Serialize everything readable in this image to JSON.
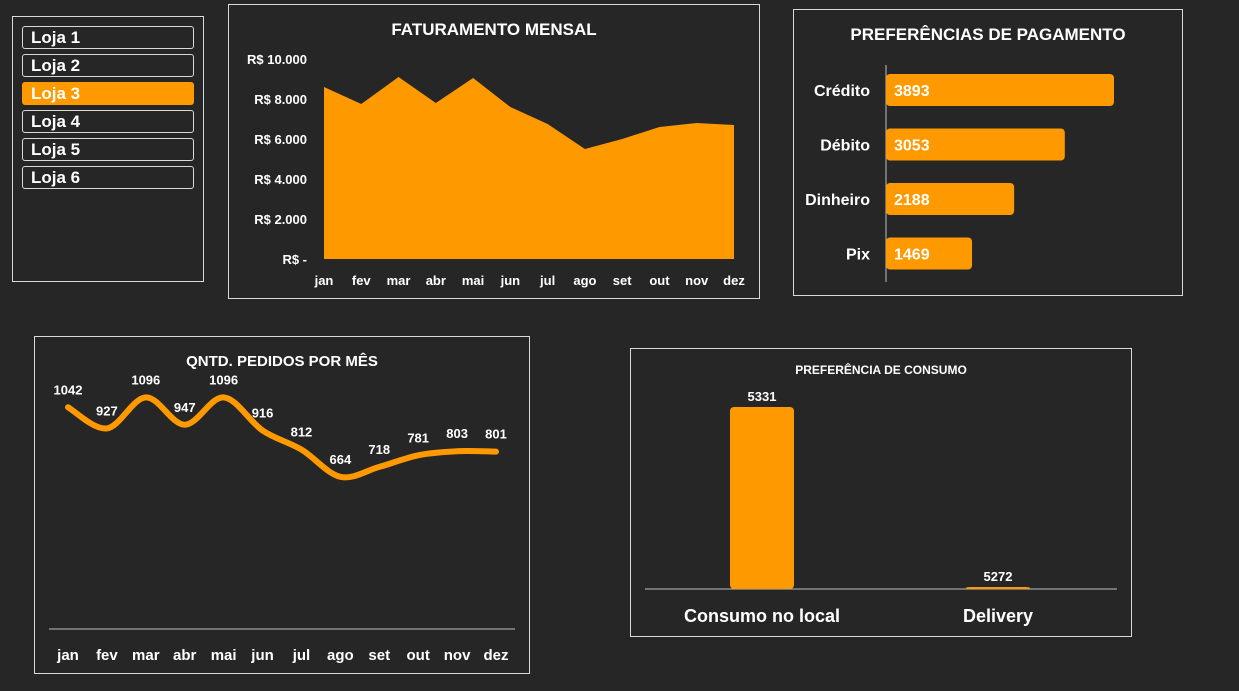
{
  "stores": {
    "items": [
      {
        "label": "Loja 1",
        "active": false
      },
      {
        "label": "Loja 2",
        "active": false
      },
      {
        "label": "Loja 3",
        "active": true
      },
      {
        "label": "Loja 4",
        "active": false
      },
      {
        "label": "Loja 5",
        "active": false
      },
      {
        "label": "Loja 6",
        "active": false
      }
    ]
  },
  "colors": {
    "background": "#262626",
    "accent": "#ff9900",
    "text": "#ffffff",
    "border": "#d9d9d9"
  },
  "chart_data": [
    {
      "id": "revenue",
      "type": "area",
      "title": "FATURAMENTO MENSAL",
      "categories": [
        "jan",
        "fev",
        "mar",
        "abr",
        "mai",
        "jun",
        "jul",
        "ago",
        "set",
        "out",
        "nov",
        "dez"
      ],
      "values": [
        8600,
        7750,
        9100,
        7800,
        9050,
        7600,
        6750,
        5500,
        6000,
        6600,
        6800,
        6700
      ],
      "ylim": [
        0,
        10000
      ],
      "yticks": [
        0,
        2000,
        4000,
        6000,
        8000,
        10000
      ],
      "ytick_labels": [
        "R$ -",
        "R$ 2.000",
        "R$ 4.000",
        "R$ 6.000",
        "R$ 8.000",
        "R$ 10.000"
      ],
      "grid": false,
      "legend": "none"
    },
    {
      "id": "payments",
      "type": "bar",
      "orientation": "horizontal",
      "title": "PREFERÊNCIAS DE PAGAMENTO",
      "categories": [
        "Crédito",
        "Débito",
        "Dinheiro",
        "Pix"
      ],
      "values": [
        3893,
        3053,
        2188,
        1469
      ],
      "xlim": [
        0,
        4500
      ],
      "grid": false,
      "legend": "none"
    },
    {
      "id": "orders",
      "type": "line",
      "title": "QNTD. PEDIDOS POR MÊS",
      "categories": [
        "jan",
        "fev",
        "mar",
        "abr",
        "mai",
        "jun",
        "jul",
        "ago",
        "set",
        "out",
        "nov",
        "dez"
      ],
      "values": [
        1042,
        927,
        1096,
        947,
        1096,
        916,
        812,
        664,
        718,
        781,
        803,
        801
      ],
      "ylim": [
        0,
        1250
      ],
      "grid": false,
      "legend": "none"
    },
    {
      "id": "consumption",
      "type": "bar",
      "title": "PREFERÊNCIA DE CONSUMO",
      "categories": [
        "Consumo no local",
        "Delivery"
      ],
      "values": [
        5331,
        5272
      ],
      "grid": false,
      "legend": "none"
    }
  ]
}
